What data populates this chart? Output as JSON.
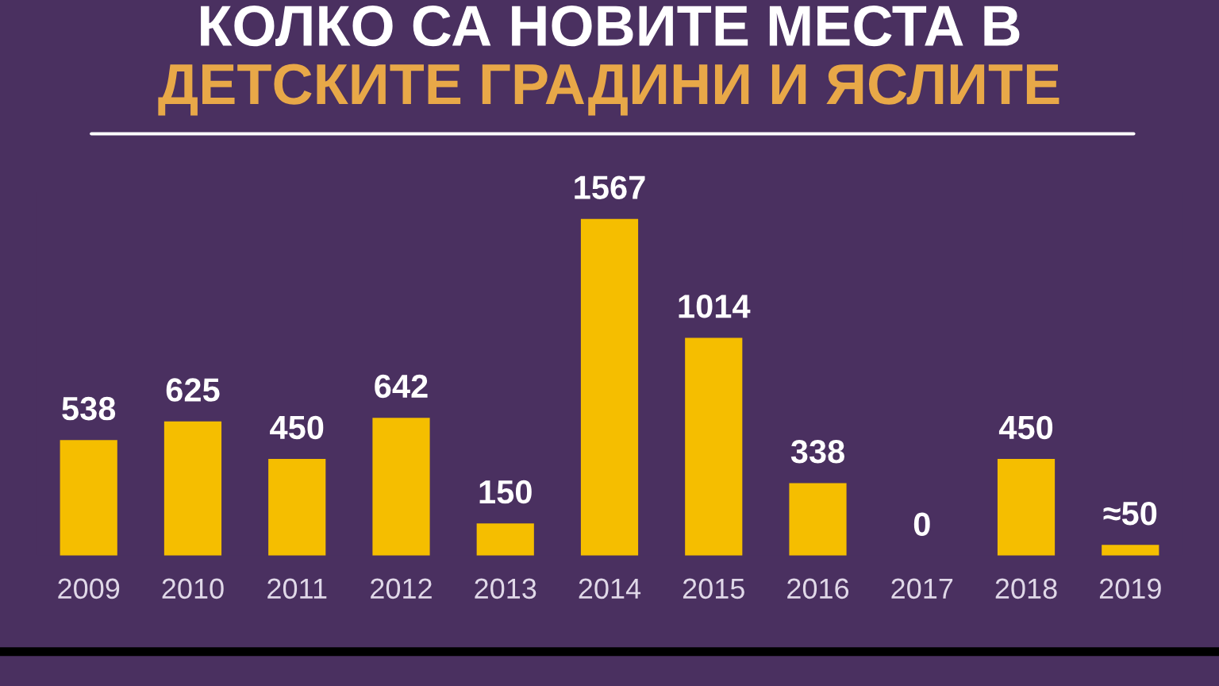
{
  "chart_data": {
    "type": "bar",
    "title": "КОЛКО СА НОВИТЕ МЕСТА В",
    "subtitle": "ДЕТСКИТЕ ГРАДИНИ И ЯСЛИТЕ",
    "categories": [
      "2009",
      "2010",
      "2011",
      "2012",
      "2013",
      "2014",
      "2015",
      "2016",
      "2017",
      "2018",
      "2019"
    ],
    "values": [
      538,
      625,
      450,
      642,
      150,
      1567,
      1014,
      338,
      0,
      450,
      50
    ],
    "value_labels": [
      "538",
      "625",
      "450",
      "642",
      "150",
      "1567",
      "1014",
      "338",
      "0",
      "450",
      "≈50"
    ],
    "color": "#f5be00",
    "grid": false,
    "legend": false
  }
}
